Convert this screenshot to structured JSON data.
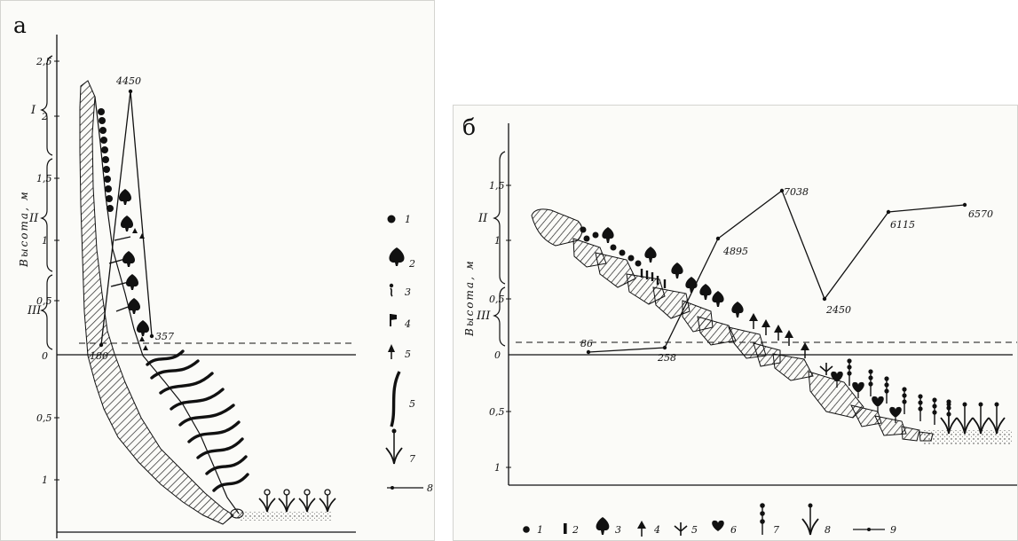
{
  "panel_a": {
    "letter": "а",
    "axis_label": "Высота, м",
    "ticks_up": [
      "2,5",
      "2",
      "1,5",
      "1",
      "0,5",
      "0"
    ],
    "ticks_down": [
      "0,5",
      "1"
    ],
    "zones": [
      "I",
      "II",
      "III"
    ],
    "line_values": [
      "4450",
      "357",
      "180"
    ],
    "legend": [
      "1",
      "2",
      "3",
      "4",
      "5",
      "5",
      "7",
      "8"
    ]
  },
  "panel_b": {
    "letter": "б",
    "axis_label": "Высота, м",
    "ticks_up": [
      "1,5",
      "1",
      "0,5",
      "0"
    ],
    "ticks_down": [
      "0,5",
      "1"
    ],
    "zones": [
      "II",
      "III"
    ],
    "line_values": [
      "86",
      "258",
      "4895",
      "7038",
      "2450",
      "6115",
      "6570"
    ],
    "legend": [
      "1",
      "2",
      "3",
      "4",
      "5",
      "6",
      "7",
      "8",
      "9"
    ]
  },
  "colors": {
    "ink": "#111111",
    "paper": "#fbfbf8"
  },
  "icons": [
    "dot-icon",
    "bar-icon",
    "spade-icon",
    "arrow-tree-icon",
    "branch-icon",
    "heart-icon",
    "bead-chain-icon",
    "tulip-icon",
    "blade-icon",
    "line-marker-icon"
  ]
}
